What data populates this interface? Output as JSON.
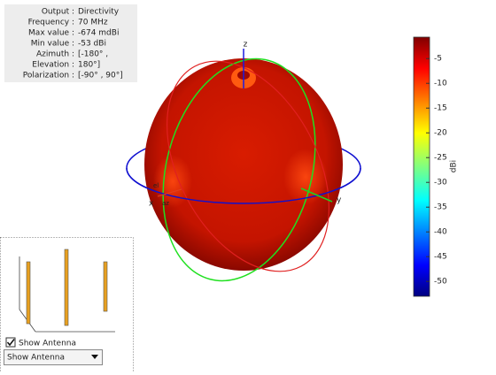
{
  "info": {
    "rows": [
      {
        "label": "Output :",
        "value": "Directivity"
      },
      {
        "label": "Frequency :",
        "value": "70 MHz"
      },
      {
        "label": "Max value :",
        "value": "-674 mdBi"
      },
      {
        "label": "Min value :",
        "value": "-53 dBi"
      },
      {
        "label": "Azimuth :",
        "value": "[-180° ,"
      },
      {
        "label": "Elevation :",
        "value": "180°]"
      },
      {
        "label": "Polarization :",
        "value": "[-90° , 90°]"
      }
    ]
  },
  "axes": {
    "z": "z",
    "x": "x",
    "y": "y",
    "az": "az",
    "el": "el"
  },
  "colorbar": {
    "label": "dBi",
    "lim": [
      -53,
      -0.674
    ],
    "ticks": [
      -5,
      -10,
      -15,
      -20,
      -25,
      -30,
      -35,
      -40,
      -45,
      -50
    ]
  },
  "controls": {
    "checkbox": {
      "label": "Show Antenna",
      "checked": true
    },
    "dropdown": {
      "value": "Show Antenna"
    }
  }
}
